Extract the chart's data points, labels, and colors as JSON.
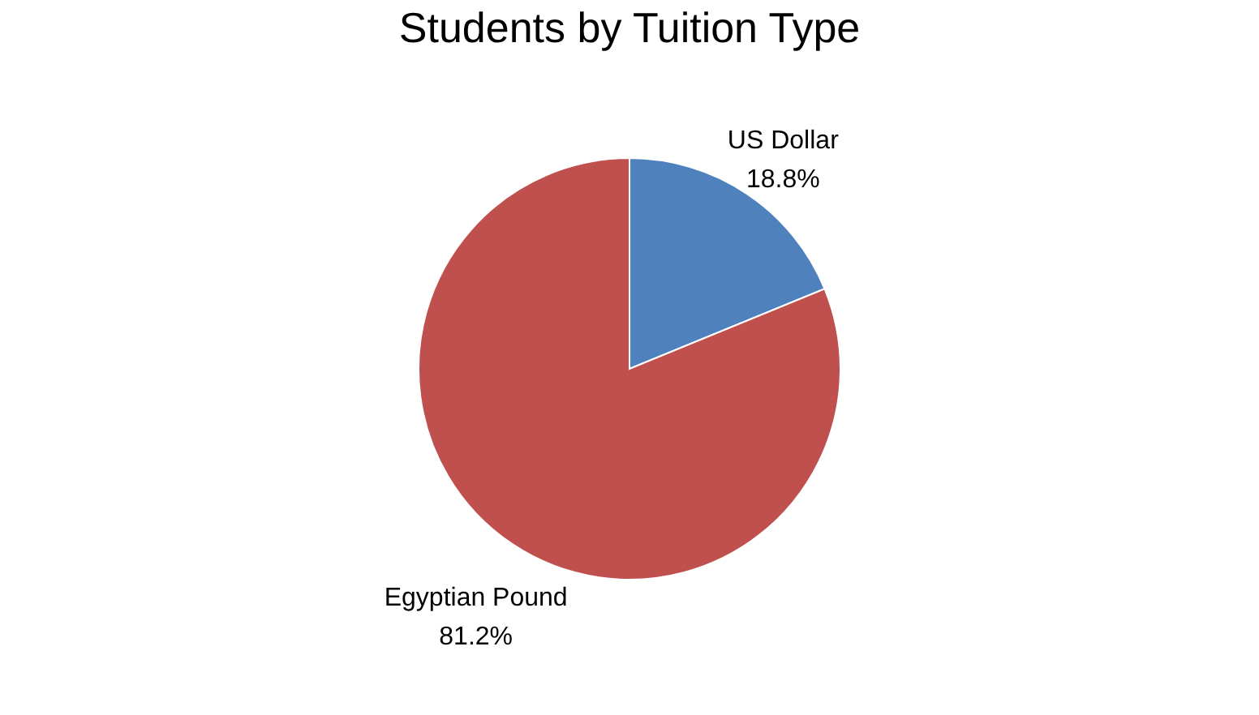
{
  "chart_data": {
    "type": "pie",
    "title": "Students by Tuition Type",
    "categories": [
      "US Dollar",
      "Egyptian Pound"
    ],
    "values": [
      18.8,
      81.2
    ],
    "colors": [
      "#4f81bd",
      "#c0504d"
    ],
    "value_labels": [
      "18.8%",
      "81.2%"
    ],
    "legend": false
  }
}
